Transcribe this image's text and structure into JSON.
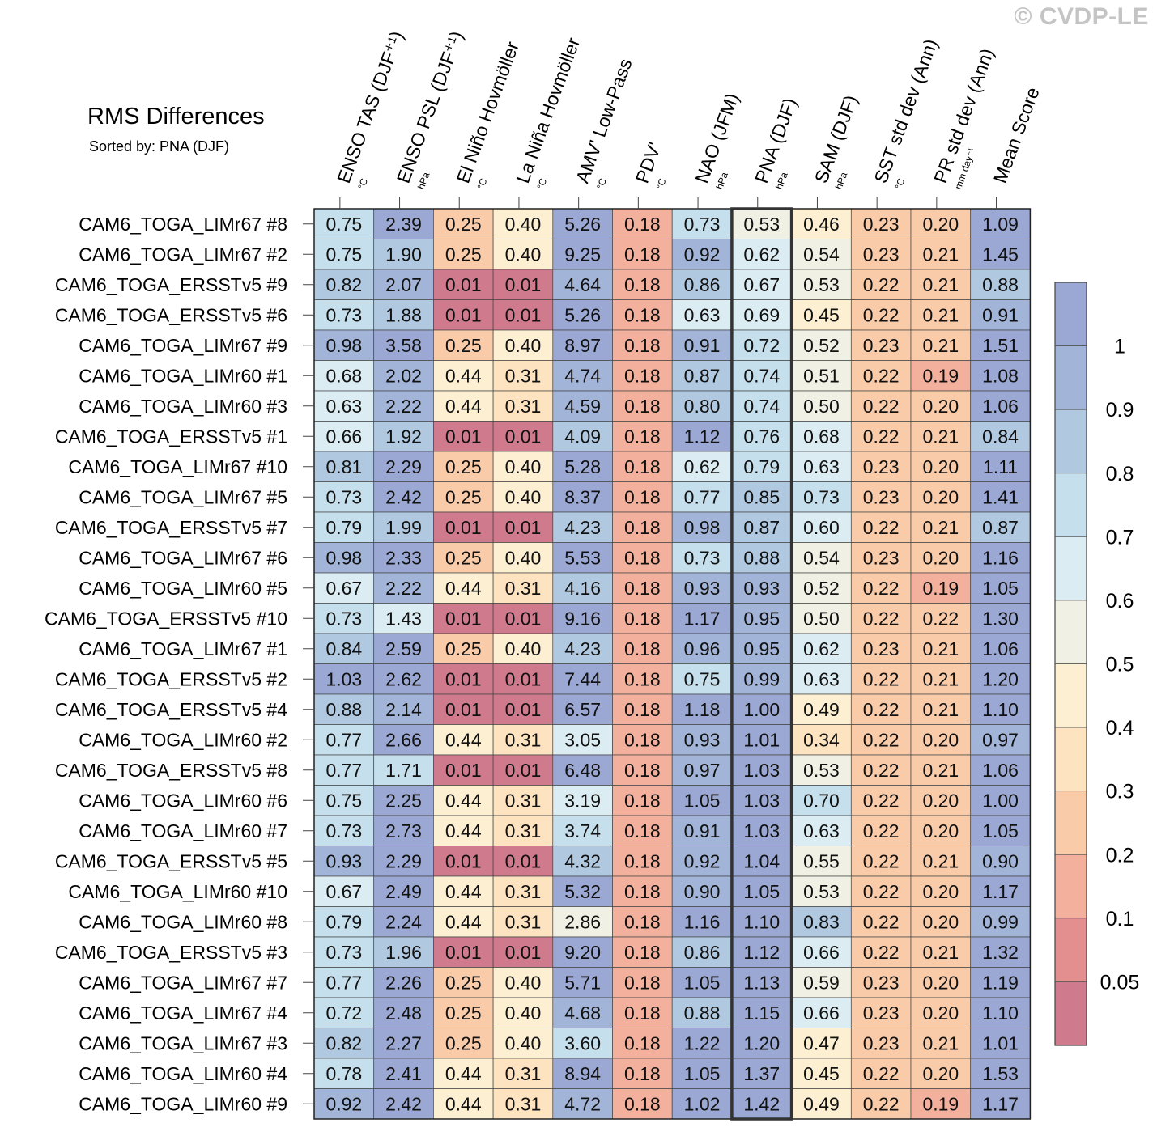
{
  "watermark": "© CVDP-LE",
  "title": "RMS Differences",
  "subtitle": "Sorted by: PNA (DJF)",
  "chart_data": {
    "type": "heatmap",
    "columns": [
      {
        "label": "ENSO TAS (DJF⁺¹)",
        "unit": "°C"
      },
      {
        "label": "ENSO PSL (DJF⁺¹)",
        "unit": "hPa"
      },
      {
        "label": "El Niño Hovmöller",
        "unit": "°C"
      },
      {
        "label": "La Niña Hovmöller",
        "unit": "°C"
      },
      {
        "label": "AMV' Low-Pass",
        "unit": "°C"
      },
      {
        "label": "PDV'",
        "unit": "°C"
      },
      {
        "label": "NAO (JFM)",
        "unit": "hPa"
      },
      {
        "label": "PNA (DJF)",
        "unit": "hPa"
      },
      {
        "label": "SAM (DJF)",
        "unit": "hPa"
      },
      {
        "label": "SST std dev (Ann)",
        "unit": "°C"
      },
      {
        "label": "PR std dev (Ann)",
        "unit": "mm day⁻¹"
      },
      {
        "label": "Mean Score",
        "unit": ""
      }
    ],
    "highlighted_column": "PNA (DJF)",
    "rows": [
      {
        "name": "CAM6_TOGA_LIMr67 #8",
        "values": [
          "0.75",
          "2.39",
          "0.25",
          "0.40",
          "5.26",
          "0.18",
          "0.73",
          "0.53",
          "0.46",
          "0.23",
          "0.20",
          "1.09"
        ]
      },
      {
        "name": "CAM6_TOGA_LIMr67 #2",
        "values": [
          "0.75",
          "1.90",
          "0.25",
          "0.40",
          "9.25",
          "0.18",
          "0.92",
          "0.62",
          "0.54",
          "0.23",
          "0.21",
          "1.45"
        ]
      },
      {
        "name": "CAM6_TOGA_ERSSTv5 #9",
        "values": [
          "0.82",
          "2.07",
          "0.01",
          "0.01",
          "4.64",
          "0.18",
          "0.86",
          "0.67",
          "0.53",
          "0.22",
          "0.21",
          "0.88"
        ]
      },
      {
        "name": "CAM6_TOGA_ERSSTv5 #6",
        "values": [
          "0.73",
          "1.88",
          "0.01",
          "0.01",
          "5.26",
          "0.18",
          "0.63",
          "0.69",
          "0.45",
          "0.22",
          "0.21",
          "0.91"
        ]
      },
      {
        "name": "CAM6_TOGA_LIMr67 #9",
        "values": [
          "0.98",
          "3.58",
          "0.25",
          "0.40",
          "8.97",
          "0.18",
          "0.91",
          "0.72",
          "0.52",
          "0.23",
          "0.21",
          "1.51"
        ]
      },
      {
        "name": "CAM6_TOGA_LIMr60 #1",
        "values": [
          "0.68",
          "2.02",
          "0.44",
          "0.31",
          "4.74",
          "0.18",
          "0.87",
          "0.74",
          "0.51",
          "0.22",
          "0.19",
          "1.08"
        ]
      },
      {
        "name": "CAM6_TOGA_LIMr60 #3",
        "values": [
          "0.63",
          "2.22",
          "0.44",
          "0.31",
          "4.59",
          "0.18",
          "0.80",
          "0.74",
          "0.50",
          "0.22",
          "0.20",
          "1.06"
        ]
      },
      {
        "name": "CAM6_TOGA_ERSSTv5 #1",
        "values": [
          "0.66",
          "1.92",
          "0.01",
          "0.01",
          "4.09",
          "0.18",
          "1.12",
          "0.76",
          "0.68",
          "0.22",
          "0.21",
          "0.84"
        ]
      },
      {
        "name": "CAM6_TOGA_LIMr67 #10",
        "values": [
          "0.81",
          "2.29",
          "0.25",
          "0.40",
          "5.28",
          "0.18",
          "0.62",
          "0.79",
          "0.63",
          "0.23",
          "0.20",
          "1.11"
        ]
      },
      {
        "name": "CAM6_TOGA_LIMr67 #5",
        "values": [
          "0.73",
          "2.42",
          "0.25",
          "0.40",
          "8.37",
          "0.18",
          "0.77",
          "0.85",
          "0.73",
          "0.23",
          "0.20",
          "1.41"
        ]
      },
      {
        "name": "CAM6_TOGA_ERSSTv5 #7",
        "values": [
          "0.79",
          "1.99",
          "0.01",
          "0.01",
          "4.23",
          "0.18",
          "0.98",
          "0.87",
          "0.60",
          "0.22",
          "0.21",
          "0.87"
        ]
      },
      {
        "name": "CAM6_TOGA_LIMr67 #6",
        "values": [
          "0.98",
          "2.33",
          "0.25",
          "0.40",
          "5.53",
          "0.18",
          "0.73",
          "0.88",
          "0.54",
          "0.23",
          "0.20",
          "1.16"
        ]
      },
      {
        "name": "CAM6_TOGA_LIMr60 #5",
        "values": [
          "0.67",
          "2.22",
          "0.44",
          "0.31",
          "4.16",
          "0.18",
          "0.93",
          "0.93",
          "0.52",
          "0.22",
          "0.19",
          "1.05"
        ]
      },
      {
        "name": "CAM6_TOGA_ERSSTv5 #10",
        "values": [
          "0.73",
          "1.43",
          "0.01",
          "0.01",
          "9.16",
          "0.18",
          "1.17",
          "0.95",
          "0.50",
          "0.22",
          "0.22",
          "1.30"
        ]
      },
      {
        "name": "CAM6_TOGA_LIMr67 #1",
        "values": [
          "0.84",
          "2.59",
          "0.25",
          "0.40",
          "4.23",
          "0.18",
          "0.96",
          "0.95",
          "0.62",
          "0.23",
          "0.21",
          "1.06"
        ]
      },
      {
        "name": "CAM6_TOGA_ERSSTv5 #2",
        "values": [
          "1.03",
          "2.62",
          "0.01",
          "0.01",
          "7.44",
          "0.18",
          "0.75",
          "0.99",
          "0.63",
          "0.22",
          "0.21",
          "1.20"
        ]
      },
      {
        "name": "CAM6_TOGA_ERSSTv5 #4",
        "values": [
          "0.88",
          "2.14",
          "0.01",
          "0.01",
          "6.57",
          "0.18",
          "1.18",
          "1.00",
          "0.49",
          "0.22",
          "0.21",
          "1.10"
        ]
      },
      {
        "name": "CAM6_TOGA_LIMr60 #2",
        "values": [
          "0.77",
          "2.66",
          "0.44",
          "0.31",
          "3.05",
          "0.18",
          "0.93",
          "1.01",
          "0.34",
          "0.22",
          "0.20",
          "0.97"
        ]
      },
      {
        "name": "CAM6_TOGA_ERSSTv5 #8",
        "values": [
          "0.77",
          "1.71",
          "0.01",
          "0.01",
          "6.48",
          "0.18",
          "0.97",
          "1.03",
          "0.53",
          "0.22",
          "0.21",
          "1.06"
        ]
      },
      {
        "name": "CAM6_TOGA_LIMr60 #6",
        "values": [
          "0.75",
          "2.25",
          "0.44",
          "0.31",
          "3.19",
          "0.18",
          "1.05",
          "1.03",
          "0.70",
          "0.22",
          "0.20",
          "1.00"
        ]
      },
      {
        "name": "CAM6_TOGA_LIMr60 #7",
        "values": [
          "0.73",
          "2.73",
          "0.44",
          "0.31",
          "3.74",
          "0.18",
          "0.91",
          "1.03",
          "0.63",
          "0.22",
          "0.20",
          "1.05"
        ]
      },
      {
        "name": "CAM6_TOGA_ERSSTv5 #5",
        "values": [
          "0.93",
          "2.29",
          "0.01",
          "0.01",
          "4.32",
          "0.18",
          "0.92",
          "1.04",
          "0.55",
          "0.22",
          "0.21",
          "0.90"
        ]
      },
      {
        "name": "CAM6_TOGA_LIMr60 #10",
        "values": [
          "0.67",
          "2.49",
          "0.44",
          "0.31",
          "5.32",
          "0.18",
          "0.90",
          "1.05",
          "0.53",
          "0.22",
          "0.20",
          "1.17"
        ]
      },
      {
        "name": "CAM6_TOGA_LIMr60 #8",
        "values": [
          "0.79",
          "2.24",
          "0.44",
          "0.31",
          "2.86",
          "0.18",
          "1.16",
          "1.10",
          "0.83",
          "0.22",
          "0.20",
          "0.99"
        ]
      },
      {
        "name": "CAM6_TOGA_ERSSTv5 #3",
        "values": [
          "0.73",
          "1.96",
          "0.01",
          "0.01",
          "9.20",
          "0.18",
          "0.86",
          "1.12",
          "0.66",
          "0.22",
          "0.21",
          "1.32"
        ]
      },
      {
        "name": "CAM6_TOGA_LIMr67 #7",
        "values": [
          "0.77",
          "2.26",
          "0.25",
          "0.40",
          "5.71",
          "0.18",
          "1.05",
          "1.13",
          "0.59",
          "0.23",
          "0.20",
          "1.19"
        ]
      },
      {
        "name": "CAM6_TOGA_LIMr67 #4",
        "values": [
          "0.72",
          "2.48",
          "0.25",
          "0.40",
          "4.68",
          "0.18",
          "0.88",
          "1.15",
          "0.66",
          "0.23",
          "0.20",
          "1.10"
        ]
      },
      {
        "name": "CAM6_TOGA_LIMr67 #3",
        "values": [
          "0.82",
          "2.27",
          "0.25",
          "0.40",
          "3.60",
          "0.18",
          "1.22",
          "1.20",
          "0.47",
          "0.23",
          "0.21",
          "1.01"
        ]
      },
      {
        "name": "CAM6_TOGA_LIMr60 #4",
        "values": [
          "0.78",
          "2.41",
          "0.44",
          "0.31",
          "8.94",
          "0.18",
          "1.05",
          "1.37",
          "0.45",
          "0.22",
          "0.20",
          "1.53"
        ]
      },
      {
        "name": "CAM6_TOGA_LIMr60 #9",
        "values": [
          "0.92",
          "2.42",
          "0.44",
          "0.31",
          "4.72",
          "0.18",
          "1.02",
          "1.42",
          "0.49",
          "0.22",
          "0.19",
          "1.17"
        ]
      }
    ],
    "colorbar": {
      "labels": [
        "1",
        "0.9",
        "0.8",
        "0.7",
        "0.6",
        "0.5",
        "0.4",
        "0.3",
        "0.2",
        "0.1",
        "0.05"
      ],
      "thresholds": [
        0.05,
        0.1,
        0.2,
        0.3,
        0.4,
        0.5,
        0.6,
        0.7,
        0.8,
        0.9,
        1
      ],
      "colors": [
        "#d07a8d",
        "#e38f8f",
        "#f3b19d",
        "#f9cba9",
        "#fde3bf",
        "#fcefd2",
        "#f0f0e4",
        "#dcecf3",
        "#c6dfec",
        "#b0c9e1",
        "#a2b5d8",
        "#9aa8d3"
      ]
    }
  }
}
